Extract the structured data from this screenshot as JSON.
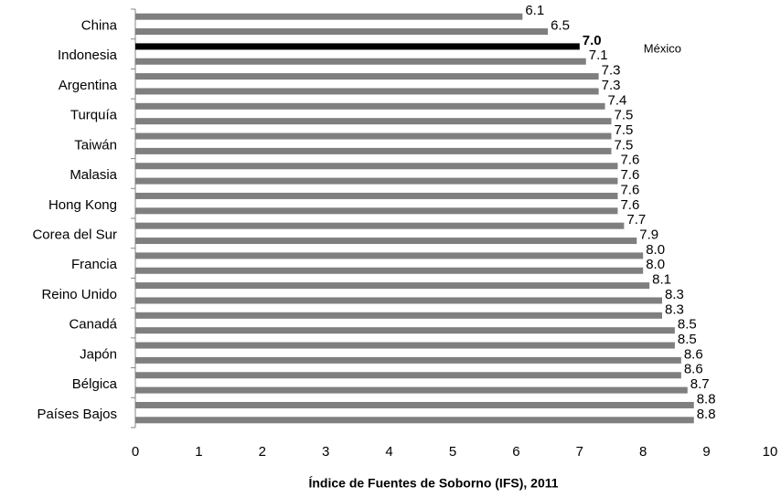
{
  "chart_data": {
    "type": "barh",
    "categories": [
      null,
      "China",
      null,
      "Indonesia",
      null,
      "Argentina",
      null,
      "Turquía",
      null,
      "Taiwán",
      null,
      "Malasia",
      null,
      "Hong Kong",
      null,
      "Corea del Sur",
      null,
      "Francia",
      null,
      "Reino Unido",
      null,
      "Canadá",
      null,
      "Japón",
      null,
      "Bélgica",
      null,
      "Países Bajos"
    ],
    "values": [
      6.1,
      6.5,
      7.0,
      7.1,
      7.3,
      7.3,
      7.4,
      7.5,
      7.5,
      7.5,
      7.6,
      7.6,
      7.6,
      7.6,
      7.7,
      7.9,
      8.0,
      8.0,
      8.1,
      8.3,
      8.3,
      8.5,
      8.5,
      8.6,
      8.6,
      8.7,
      8.8,
      8.8
    ],
    "value_labels": [
      "6.1",
      "6.5",
      "7.0",
      "7.1",
      "7.3",
      "7.3",
      "7.4",
      "7.5",
      "7.5",
      "7.5",
      "7.6",
      "7.6",
      "7.6",
      "7.6",
      "7.7",
      "7.9",
      "8.0",
      "8.0",
      "8.1",
      "8.3",
      "8.3",
      "8.5",
      "8.5",
      "8.6",
      "8.6",
      "8.7",
      "8.8",
      "8.8"
    ],
    "colors": [
      "#7f7f7f",
      "#7f7f7f",
      "#000000",
      "#7f7f7f",
      "#7f7f7f",
      "#7f7f7f",
      "#7f7f7f",
      "#7f7f7f",
      "#7f7f7f",
      "#7f7f7f",
      "#7f7f7f",
      "#7f7f7f",
      "#7f7f7f",
      "#7f7f7f",
      "#7f7f7f",
      "#7f7f7f",
      "#7f7f7f",
      "#7f7f7f",
      "#7f7f7f",
      "#7f7f7f",
      "#7f7f7f",
      "#7f7f7f",
      "#7f7f7f",
      "#7f7f7f",
      "#7f7f7f",
      "#7f7f7f",
      "#7f7f7f",
      "#7f7f7f"
    ],
    "annotation": {
      "text": "México",
      "index": 2
    },
    "xlabel": "Índice de Fuentes de Soborno (IFS), 2011",
    "xlim": [
      0,
      10
    ],
    "xticks": [
      0,
      1,
      2,
      3,
      4,
      5,
      6,
      7,
      8,
      9,
      10
    ]
  }
}
